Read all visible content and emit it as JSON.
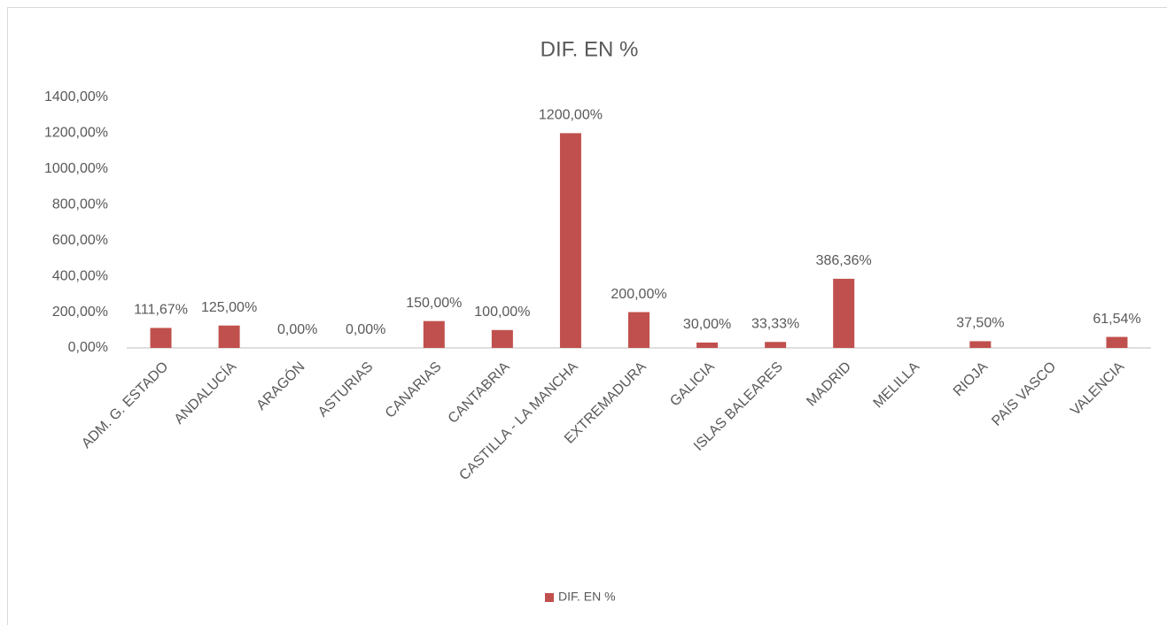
{
  "chart_data": {
    "type": "bar",
    "title": "DIF. EN %",
    "categories": [
      "ADM. G. ESTADO",
      "ANDALUCÍA",
      "ARAGÓN",
      "ASTURIAS",
      "CANARIAS",
      "CANTABRIA",
      "CASTILLA - LA MANCHA",
      "EXTREMADURA",
      "GALICIA",
      "ISLAS BALEARES",
      "MADRID",
      "MELILLA",
      "RIOJA",
      "PAÍS VASCO",
      "VALENCIA"
    ],
    "series": [
      {
        "name": "DIF. EN %",
        "color": "#c0504d",
        "values": [
          111.67,
          125,
          0,
          0,
          150,
          100,
          1200,
          200,
          30,
          33.33,
          386.36,
          null,
          37.5,
          null,
          61.54
        ],
        "value_labels": [
          "111,67%",
          "125,00%",
          "0,00%",
          "0,00%",
          "150,00%",
          "100,00%",
          "1200,00%",
          "200,00%",
          "30,00%",
          "33,33%",
          "386,36%",
          null,
          "37,50%",
          null,
          "61,54%"
        ]
      }
    ],
    "ylim": [
      0,
      1400
    ],
    "yticks": [
      {
        "value": 0,
        "label": "0,00%"
      },
      {
        "value": 200,
        "label": "200,00%"
      },
      {
        "value": 400,
        "label": "400,00%"
      },
      {
        "value": 600,
        "label": "600,00%"
      },
      {
        "value": 800,
        "label": "800,00%"
      },
      {
        "value": 1000,
        "label": "1000,00%"
      },
      {
        "value": 1200,
        "label": "1200,00%"
      },
      {
        "value": 1400,
        "label": "1400,00%"
      }
    ],
    "grid": false,
    "legend": "bottom"
  }
}
